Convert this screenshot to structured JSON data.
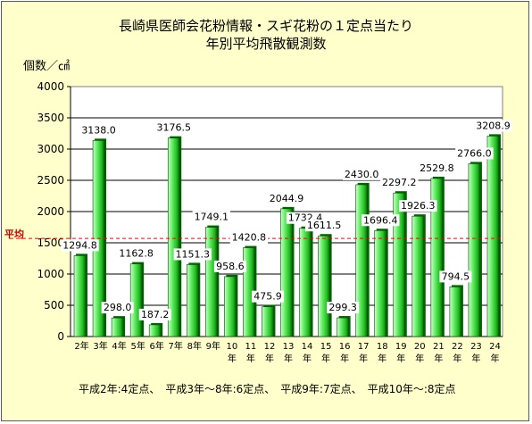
{
  "title": "長崎県医師会花粉情報・スギ花粉の１定点当たり",
  "subtitle": "年別平均飛散観測数",
  "colors": {
    "background": "#ffffcc",
    "plot_area": "#ffffff",
    "bar": "#33cc33",
    "bar_highlight": "#ccffcc",
    "bar_shadow": "#006600",
    "average_line": "#ff0000",
    "average_label": "#cc0000"
  },
  "footnote": "平成2年:4定点、　平成3年～8年:6定点、　平成9年:7定点、　平成10年～:8定点",
  "chart_data": {
    "type": "bar",
    "title": "長崎県医師会花粉情報・スギ花粉の１定点当たり 年別平均飛散観測数",
    "ylabel": "個数／㎠",
    "xlabel": "",
    "ylim": [
      0,
      4000
    ],
    "yticks": [
      0,
      500,
      1000,
      1500,
      2000,
      2500,
      3000,
      3500,
      4000
    ],
    "grid": true,
    "categories": [
      "2年",
      "3年",
      "4年",
      "5年",
      "6年",
      "7年",
      "8年",
      "9年",
      "10年",
      "11年",
      "12年",
      "13年",
      "14年",
      "15年",
      "16年",
      "17年",
      "18年",
      "19年",
      "20年",
      "21年",
      "22年",
      "23年",
      "24年"
    ],
    "values": [
      1294.8,
      3138.0,
      298.0,
      1162.8,
      187.2,
      3176.5,
      1151.3,
      1749.1,
      958.6,
      1420.8,
      475.9,
      2044.9,
      1732.4,
      1611.5,
      299.3,
      2430.0,
      1696.4,
      2297.2,
      1926.3,
      2529.8,
      794.5,
      2766.0,
      3208.9
    ],
    "value_labels": [
      "1294.8",
      "3138.0",
      "298.0",
      "1162.8",
      "187.2",
      "3176.5",
      "1151.3",
      "1749.1",
      "958.6",
      "1420.8",
      "475.9",
      "2044.9",
      "1732.4",
      "1611.5",
      "299.3",
      "2430.0",
      "1696.4",
      "2297.2",
      "1926.3",
      "2529.8",
      "794.5",
      "2766.0",
      "3208.9"
    ],
    "average_line": {
      "label": "平均",
      "value": 1570
    }
  }
}
